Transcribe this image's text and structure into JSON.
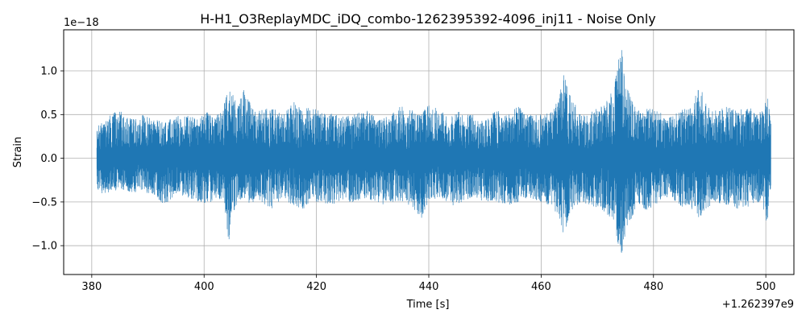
{
  "chart_data": {
    "type": "line",
    "title": "H-H1_O3ReplayMDC_iDQ_combo-1262395392-4096_inj11 - Noise Only",
    "xlabel": "Time [s]",
    "ylabel": "Strain",
    "x_offset_label": "+1.262397e9",
    "y_scale_label": "1e−18",
    "xlim": [
      375,
      505
    ],
    "ylim": [
      -1.33,
      1.47
    ],
    "x_ticks": [
      380,
      400,
      420,
      440,
      460,
      480,
      500
    ],
    "x_tick_labels": [
      "380",
      "400",
      "420",
      "440",
      "460",
      "480",
      "500"
    ],
    "y_ticks": [
      -1.0,
      -0.5,
      0.0,
      0.5,
      1.0
    ],
    "y_tick_labels": [
      "−1.0",
      "−0.5",
      "0.0",
      "0.5",
      "1.0"
    ],
    "grid": true,
    "series_color": "#1f77b4",
    "series": [
      {
        "x": [
          380.9,
          381.5,
          383.0,
          385.0,
          387.0,
          389.0,
          391.0,
          393.0,
          395.0,
          397.0,
          399.0,
          400.5,
          402.0,
          403.5,
          404.4,
          405.0,
          406.0,
          407.0,
          408.5,
          410.0,
          412.0,
          414.0,
          416.0,
          417.5,
          419.0,
          421.0,
          423.0,
          425.0,
          427.0,
          429.0,
          431.0,
          433.0,
          435.0,
          437.0,
          438.5,
          440.0,
          442.0,
          444.0,
          446.0,
          448.0,
          450.0,
          452.0,
          454.0,
          456.0,
          458.0,
          460.0,
          462.0,
          463.3,
          464.0,
          465.0,
          467.0,
          469.0,
          471.0,
          473.0,
          474.2,
          475.0,
          477.0,
          479.0,
          481.0,
          483.0,
          485.0,
          487.0,
          488.2,
          489.0,
          491.0,
          493.0,
          495.0,
          497.0,
          499.0,
          500.3,
          500.9
        ],
        "upper": [
          0.35,
          0.4,
          0.5,
          0.55,
          0.45,
          0.5,
          0.45,
          0.42,
          0.48,
          0.5,
          0.45,
          0.55,
          0.5,
          0.6,
          0.85,
          0.75,
          0.6,
          0.8,
          0.6,
          0.55,
          0.6,
          0.5,
          0.65,
          0.55,
          0.6,
          0.55,
          0.5,
          0.48,
          0.52,
          0.55,
          0.45,
          0.5,
          0.6,
          0.55,
          0.5,
          0.62,
          0.55,
          0.5,
          0.55,
          0.5,
          0.45,
          0.55,
          0.5,
          0.6,
          0.5,
          0.5,
          0.55,
          0.7,
          1.03,
          0.75,
          0.5,
          0.55,
          0.6,
          0.8,
          1.37,
          0.85,
          0.55,
          0.6,
          0.55,
          0.5,
          0.55,
          0.6,
          0.9,
          0.65,
          0.55,
          0.6,
          0.55,
          0.6,
          0.55,
          0.72,
          0.4
        ],
        "lower": [
          -0.35,
          -0.4,
          -0.4,
          -0.35,
          -0.4,
          -0.38,
          -0.42,
          -0.55,
          -0.4,
          -0.45,
          -0.5,
          -0.55,
          -0.45,
          -0.5,
          -0.97,
          -0.65,
          -0.5,
          -0.45,
          -0.55,
          -0.5,
          -0.6,
          -0.45,
          -0.55,
          -0.6,
          -0.5,
          -0.5,
          -0.55,
          -0.5,
          -0.5,
          -0.45,
          -0.55,
          -0.5,
          -0.5,
          -0.55,
          -0.72,
          -0.5,
          -0.45,
          -0.55,
          -0.5,
          -0.45,
          -0.5,
          -0.5,
          -0.55,
          -0.5,
          -0.45,
          -0.5,
          -0.55,
          -0.7,
          -0.95,
          -0.65,
          -0.5,
          -0.55,
          -0.6,
          -0.8,
          -1.2,
          -0.85,
          -0.55,
          -0.6,
          -0.5,
          -0.45,
          -0.55,
          -0.6,
          -0.7,
          -0.6,
          -0.5,
          -0.55,
          -0.6,
          -0.55,
          -0.5,
          -0.78,
          -0.4
        ]
      }
    ]
  }
}
